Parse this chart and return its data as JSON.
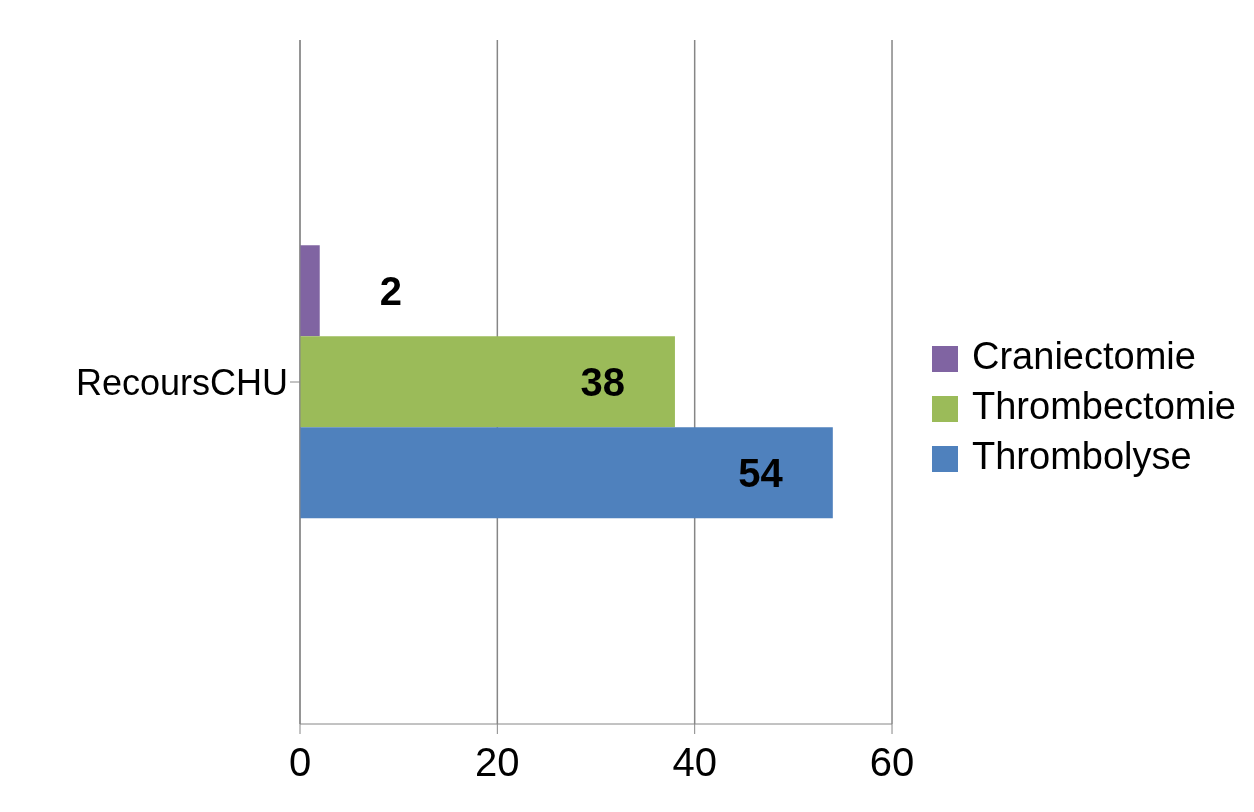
{
  "chart_data": {
    "type": "bar",
    "orientation": "horizontal",
    "categories": [
      "RecoursCHU"
    ],
    "series": [
      {
        "name": "Craniectomie",
        "color": "#8064a2",
        "values": [
          2
        ]
      },
      {
        "name": "Thrombectomie",
        "color": "#9bbb59",
        "values": [
          38
        ]
      },
      {
        "name": "Thrombolyse",
        "color": "#4f81bd",
        "values": [
          54
        ]
      }
    ],
    "xlim": [
      0,
      60
    ],
    "xticks": [
      0,
      20,
      40,
      60
    ],
    "grid": "x",
    "legend": "right",
    "data_labels": true
  }
}
